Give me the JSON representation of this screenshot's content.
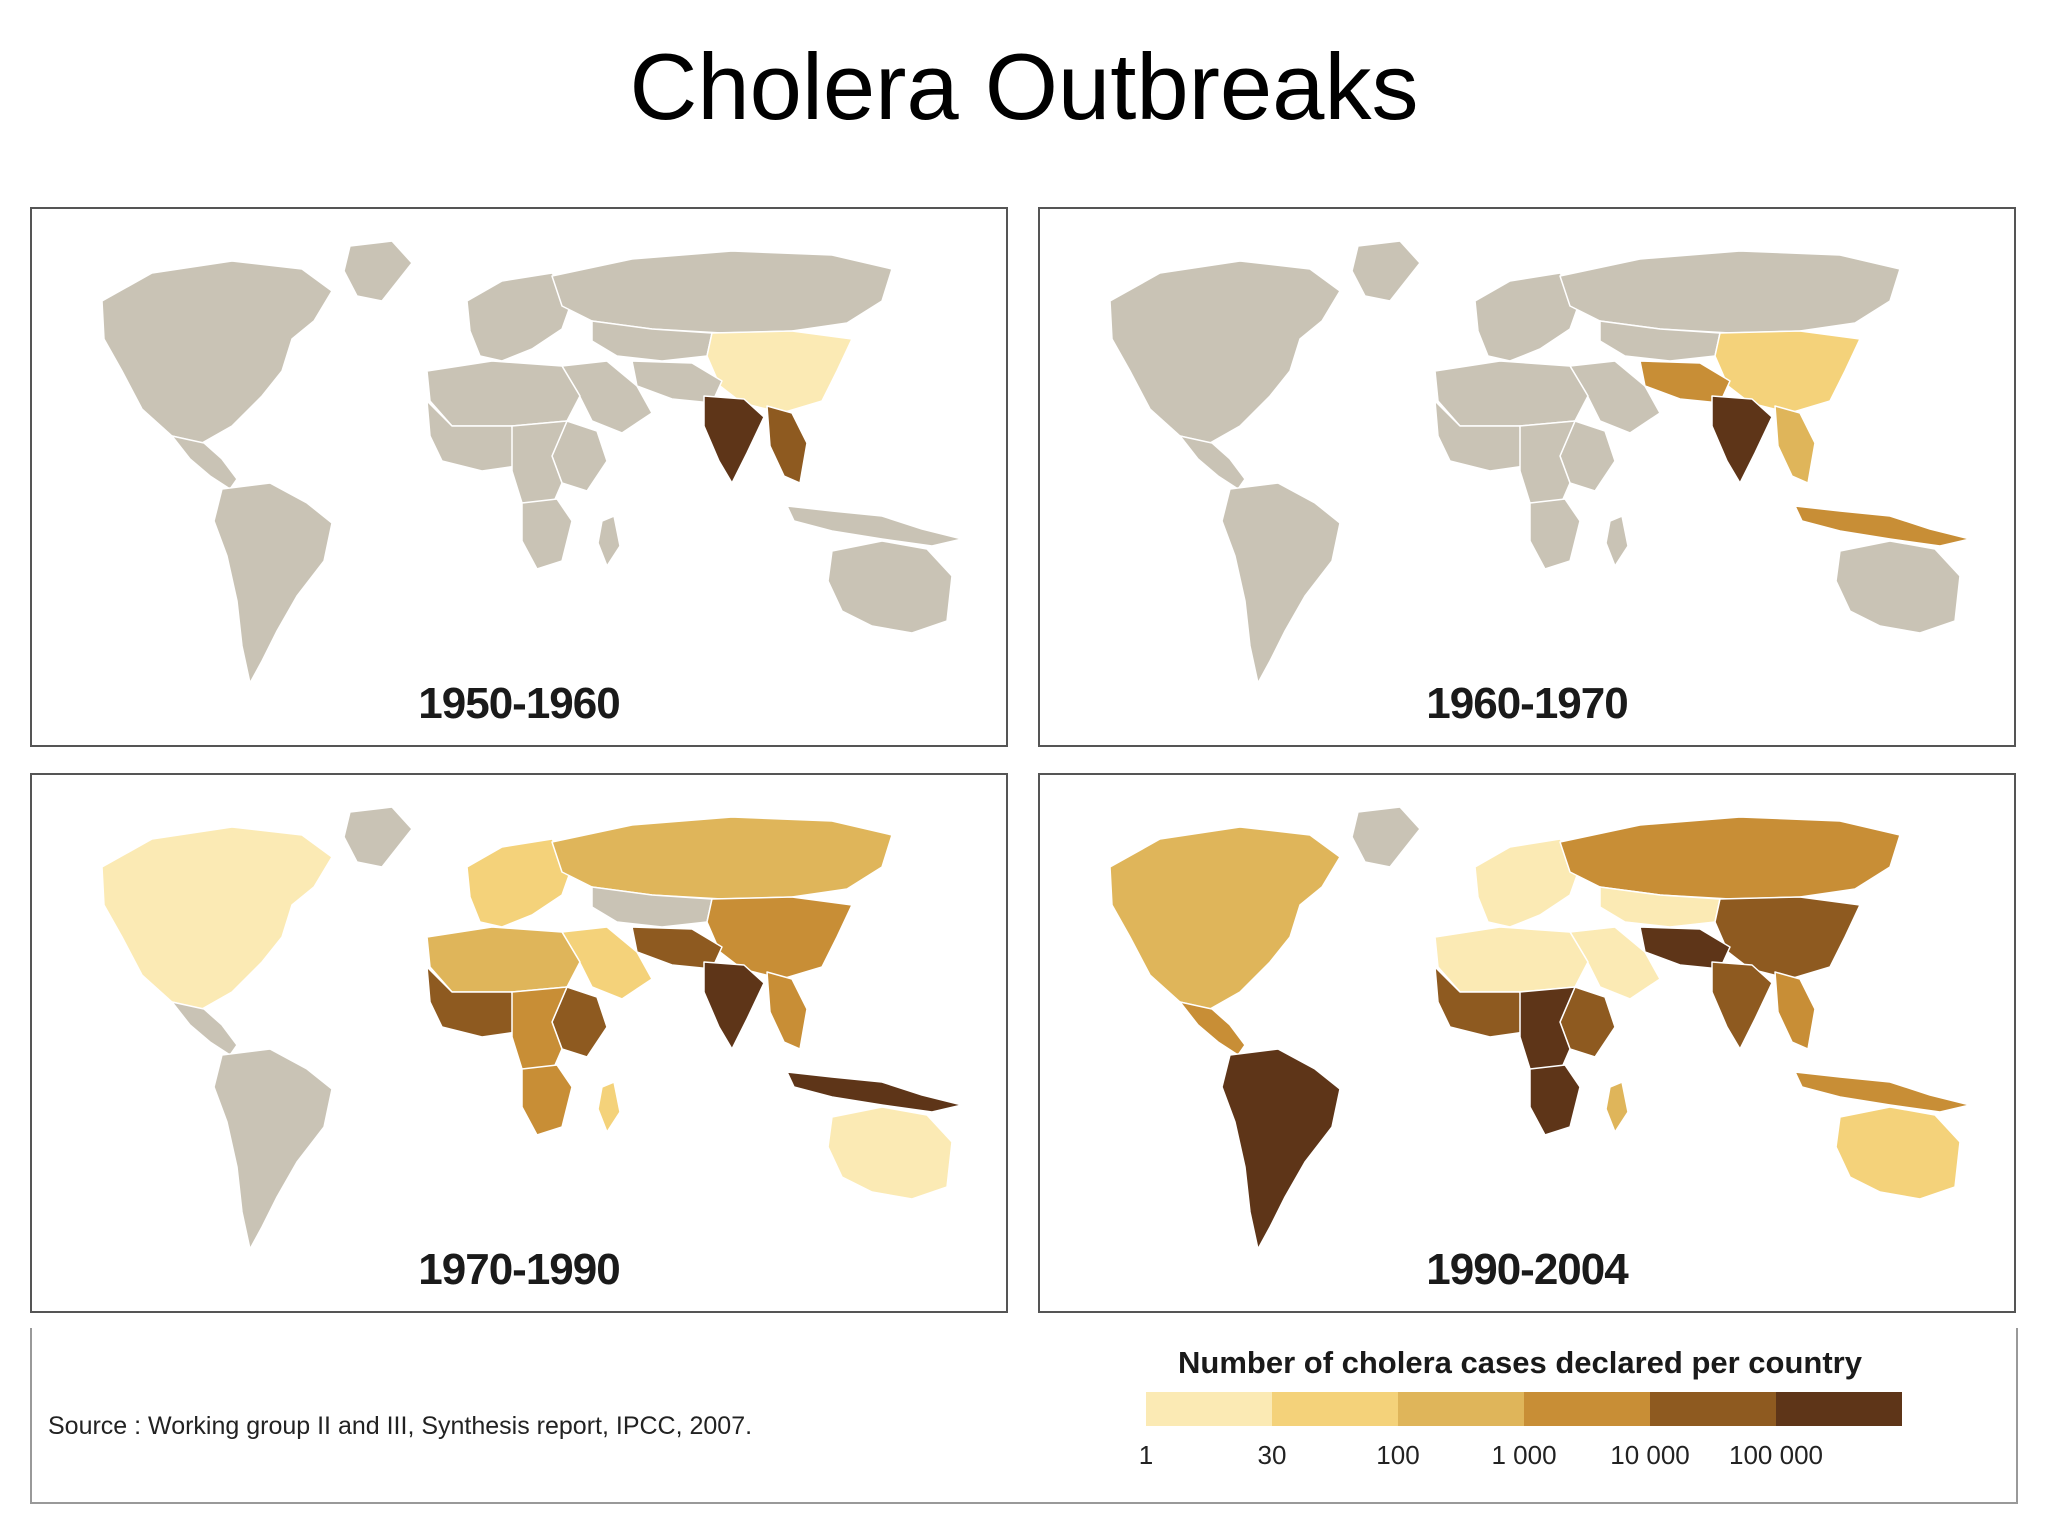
{
  "title": "Cholera Outbreaks",
  "panels": [
    {
      "label": "1950-1960",
      "levels": {
        "n_america": 0,
        "greenland": 0,
        "c_america": 0,
        "s_america": 0,
        "europe": 0,
        "russia": 0,
        "central_asia": 0,
        "china": 1,
        "india": 6,
        "se_asia": 5,
        "indonesia": 0,
        "middle_east": 0,
        "n_africa": 0,
        "w_africa": 0,
        "c_africa": 0,
        "e_africa": 0,
        "s_africa": 0,
        "madagascar": 0,
        "australia": 0,
        "iran_pak": 0
      }
    },
    {
      "label": "1960-1970",
      "levels": {
        "n_america": 0,
        "greenland": 0,
        "c_america": 0,
        "s_america": 0,
        "europe": 0,
        "russia": 0,
        "central_asia": 0,
        "china": 2,
        "india": 6,
        "se_asia": 3,
        "indonesia": 4,
        "middle_east": 0,
        "n_africa": 0,
        "w_africa": 0,
        "c_africa": 0,
        "e_africa": 0,
        "s_africa": 0,
        "madagascar": 0,
        "australia": 0,
        "iran_pak": 4
      }
    },
    {
      "label": "1970-1990",
      "levels": {
        "n_america": 1,
        "greenland": 0,
        "c_america": 0,
        "s_america": 0,
        "europe": 2,
        "russia": 3,
        "central_asia": 0,
        "china": 4,
        "india": 6,
        "se_asia": 4,
        "indonesia": 6,
        "middle_east": 2,
        "n_africa": 3,
        "w_africa": 5,
        "c_africa": 4,
        "e_africa": 5,
        "s_africa": 4,
        "madagascar": 2,
        "australia": 1,
        "iran_pak": 5
      }
    },
    {
      "label": "1990-2004",
      "levels": {
        "n_america": 3,
        "greenland": 0,
        "c_america": 4,
        "s_america": 6,
        "europe": 1,
        "russia": 4,
        "central_asia": 1,
        "china": 5,
        "india": 5,
        "se_asia": 4,
        "indonesia": 4,
        "middle_east": 1,
        "n_africa": 1,
        "w_africa": 5,
        "c_africa": 6,
        "e_africa": 5,
        "s_africa": 6,
        "madagascar": 3,
        "australia": 2,
        "iran_pak": 6
      }
    }
  ],
  "legend": {
    "title": "Number of cholera cases declared per country",
    "colors": [
      "#c9c3b5",
      "#fbeab4",
      "#f4d27a",
      "#dfb55a",
      "#c88e36",
      "#8e5a20",
      "#5e3518"
    ],
    "ticks": [
      "1",
      "30",
      "100",
      "1 000",
      "10 000",
      "100 000"
    ]
  },
  "source": "Source : Working group II and III, Synthesis report, IPCC, 2007."
}
